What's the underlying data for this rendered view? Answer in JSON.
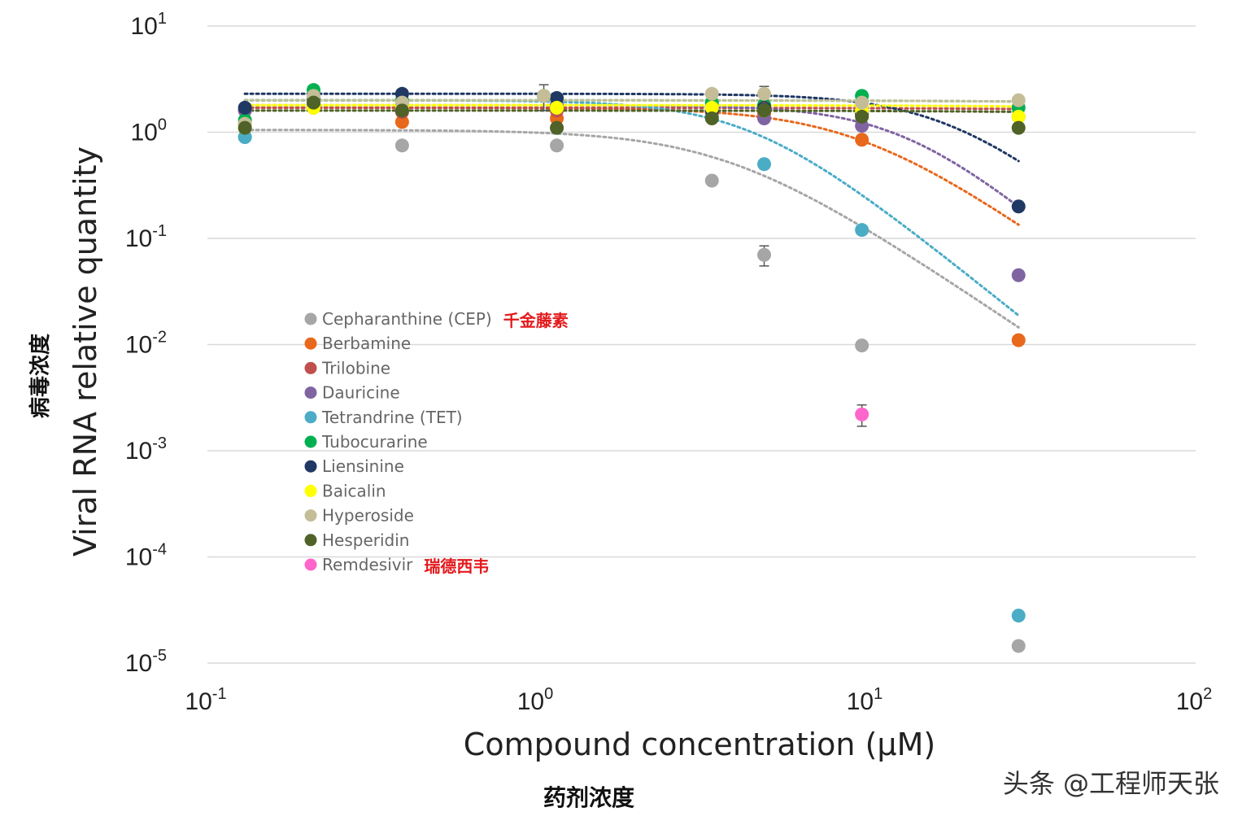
{
  "chart_data": {
    "type": "scatter",
    "title": "",
    "xlabel": "Compound concentration (μM)",
    "ylabel": "Viral RNA relative quantity",
    "xlabel_cn": "药剂浓度",
    "ylabel_cn": "病毒浓度",
    "xscale": "log",
    "yscale": "log",
    "xlim": [
      0.1,
      100
    ],
    "ylim": [
      1e-05,
      10
    ],
    "x_ticks": [
      {
        "value": 0.1,
        "base": "10",
        "exp": "-1"
      },
      {
        "value": 1,
        "base": "10",
        "exp": "0"
      },
      {
        "value": 10,
        "base": "10",
        "exp": "1"
      },
      {
        "value": 100,
        "base": "10",
        "exp": "2"
      }
    ],
    "y_ticks": [
      {
        "value": 10,
        "base": "10",
        "exp": "1"
      },
      {
        "value": 1,
        "base": "10",
        "exp": "0"
      },
      {
        "value": 0.1,
        "base": "10",
        "exp": "-1"
      },
      {
        "value": 0.01,
        "base": "10",
        "exp": "-2"
      },
      {
        "value": 0.001,
        "base": "10",
        "exp": "-3"
      },
      {
        "value": 0.0001,
        "base": "10",
        "exp": "-4"
      },
      {
        "value": 1e-05,
        "base": "10",
        "exp": "-5"
      }
    ],
    "grid": true,
    "legend_position": "center-left",
    "series": [
      {
        "name": "Cepharanthine (CEP)",
        "annotation": "千金藤素",
        "color": "#a6a6a6",
        "x": [
          0.13,
          0.39,
          1.15,
          3.4,
          4.9,
          9.7,
          29
        ],
        "y": [
          0.9,
          0.75,
          0.75,
          0.35,
          0.07,
          0.0098,
          1.45e-05
        ],
        "err": [
          0,
          0,
          0,
          0,
          0.015,
          0,
          0
        ],
        "fit": {
          "top": 1.05,
          "ic50": 3.8,
          "hill": 2.1
        }
      },
      {
        "name": "Berbamine",
        "annotation": "",
        "color": "#e8681c",
        "x": [
          0.13,
          0.39,
          1.15,
          3.4,
          4.9,
          9.7,
          29
        ],
        "y": [
          1.2,
          1.25,
          1.35,
          1.4,
          1.5,
          0.85,
          0.011
        ],
        "err": [
          0,
          0,
          0,
          0,
          0,
          0,
          0
        ],
        "fit": {
          "top": 1.7,
          "ic50": 9.5,
          "hill": 2.2
        }
      },
      {
        "name": "Trilobine",
        "annotation": "",
        "color": "#c0504d",
        "x": [
          0.13,
          0.21,
          0.39,
          1.15,
          3.4,
          4.9,
          9.7,
          29
        ],
        "y": [
          1.6,
          1.7,
          1.55,
          1.6,
          1.5,
          1.55,
          1.45,
          1.4
        ],
        "err": [
          0,
          0,
          0,
          0,
          0,
          0,
          0,
          0
        ],
        "fit": {
          "top": 1.7,
          "ic50": 1000,
          "hill": 1
        }
      },
      {
        "name": "Dauricine",
        "annotation": "",
        "color": "#8064a2",
        "x": [
          0.13,
          0.21,
          0.39,
          1.15,
          3.4,
          4.9,
          9.7,
          29
        ],
        "y": [
          1.6,
          1.8,
          1.7,
          1.8,
          1.6,
          1.35,
          1.15,
          0.045
        ],
        "err": [
          0,
          0,
          0,
          0,
          0,
          0,
          0,
          0
        ],
        "fit": {
          "top": 1.8,
          "ic50": 13,
          "hill": 2.6
        }
      },
      {
        "name": "Tetrandrine (TET)",
        "annotation": "",
        "color": "#4bacc6",
        "x": [
          0.13,
          0.21,
          0.39,
          1.15,
          3.4,
          4.9,
          9.7,
          29
        ],
        "y": [
          0.9,
          1.8,
          1.9,
          1.7,
          1.4,
          0.5,
          0.12,
          2.8e-05
        ],
        "err": [
          0,
          0,
          0,
          0,
          0,
          0,
          0,
          0
        ],
        "fit": {
          "top": 2.0,
          "ic50": 4.5,
          "hill": 2.5
        }
      },
      {
        "name": "Tubocurarine",
        "annotation": "",
        "color": "#00b050",
        "x": [
          0.13,
          0.21,
          0.39,
          1.05,
          3.4,
          4.9,
          9.7,
          29
        ],
        "y": [
          1.3,
          2.5,
          2.0,
          2.2,
          1.9,
          1.8,
          2.2,
          1.7
        ],
        "err": [
          0,
          0,
          0,
          0,
          0,
          0,
          0,
          0
        ],
        "fit": {
          "top": 2.0,
          "ic50": 1000,
          "hill": 1
        }
      },
      {
        "name": "Liensinine",
        "annotation": "",
        "color": "#1f3864",
        "x": [
          0.13,
          0.21,
          0.39,
          1.15,
          3.4,
          4.9,
          9.7,
          29
        ],
        "y": [
          1.7,
          2.1,
          2.3,
          2.1,
          1.6,
          1.7,
          1.5,
          0.2
        ],
        "err": [
          0,
          0,
          0,
          0,
          0,
          0,
          0,
          0
        ],
        "fit": {
          "top": 2.3,
          "ic50": 18,
          "hill": 2.5
        }
      },
      {
        "name": "Baicalin",
        "annotation": "",
        "color": "#ffff00",
        "x": [
          0.13,
          0.21,
          0.39,
          1.15,
          3.4,
          4.9,
          9.7,
          29
        ],
        "y": [
          1.1,
          1.7,
          1.7,
          1.7,
          1.7,
          1.6,
          1.6,
          1.4
        ],
        "err": [
          0,
          0,
          0,
          0,
          0,
          0,
          0,
          0
        ],
        "fit": {
          "top": 1.8,
          "ic50": 1000,
          "hill": 1
        }
      },
      {
        "name": "Hyperoside",
        "annotation": "",
        "color": "#c4bd97",
        "x": [
          0.13,
          0.21,
          0.39,
          1.05,
          3.4,
          4.9,
          9.7,
          29
        ],
        "y": [
          1.2,
          2.2,
          1.9,
          2.2,
          2.3,
          2.3,
          1.9,
          2.0
        ],
        "err": [
          0,
          0.2,
          0,
          0.6,
          0,
          0.4,
          0,
          0
        ],
        "fit": {
          "top": 2.0,
          "ic50": 1000,
          "hill": 1
        }
      },
      {
        "name": "Hesperidin",
        "annotation": "",
        "color": "#4f6228",
        "x": [
          0.13,
          0.21,
          0.39,
          1.15,
          3.4,
          4.9,
          9.7,
          29
        ],
        "y": [
          1.1,
          1.9,
          1.6,
          1.1,
          1.35,
          1.6,
          1.4,
          1.1
        ],
        "err": [
          0,
          0,
          0,
          0,
          0,
          0,
          0,
          0
        ],
        "fit": {
          "top": 1.6,
          "ic50": 1000,
          "hill": 1
        }
      },
      {
        "name": "Remdesivir",
        "annotation": "瑞德西韦",
        "color": "#ff66cc",
        "x": [
          9.7
        ],
        "y": [
          0.0022
        ],
        "err": [
          0.0005
        ],
        "fit": null
      }
    ]
  },
  "watermark": "头条 @工程师天张"
}
